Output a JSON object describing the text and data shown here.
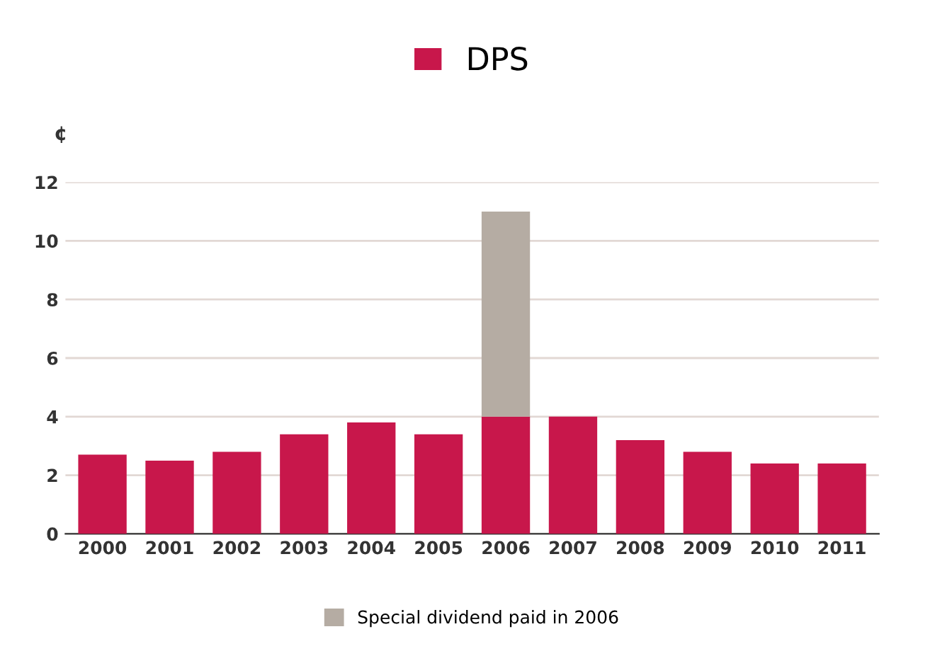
{
  "chart_data": {
    "type": "bar",
    "stacked": true,
    "ylabel": "¢",
    "categories": [
      "2000",
      "2001",
      "2002",
      "2003",
      "2004",
      "2005",
      "2006",
      "2007",
      "2008",
      "2009",
      "2010",
      "2011"
    ],
    "series": [
      {
        "name": "DPS",
        "color": "#c8174b",
        "values": [
          2.7,
          2.5,
          2.8,
          3.4,
          3.8,
          3.4,
          4.0,
          4.0,
          3.2,
          2.8,
          2.4,
          2.4
        ]
      },
      {
        "name": "Special dividend paid in 2006",
        "color": "#b5aca3",
        "values": [
          null,
          null,
          null,
          null,
          null,
          null,
          7.0,
          null,
          null,
          null,
          null,
          null
        ]
      }
    ],
    "ylim": [
      0,
      12
    ],
    "yticks": [
      0,
      2,
      4,
      6,
      8,
      10,
      12
    ],
    "grid": "y",
    "legend": "top"
  }
}
